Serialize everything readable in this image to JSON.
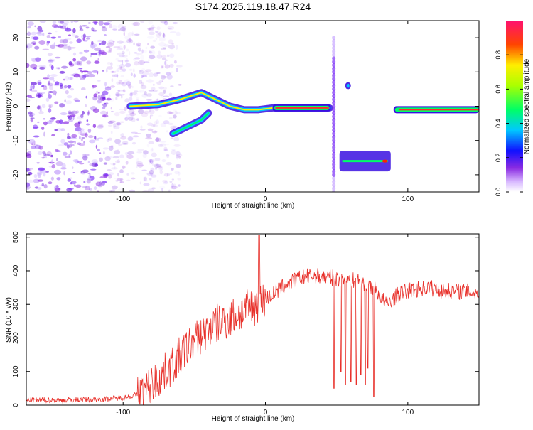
{
  "title": "S174.2025.119.18.47.R24",
  "chart_data": [
    {
      "type": "heatmap",
      "xlabel": "Height of straight line (km)",
      "ylabel": "Frequency (Hz)",
      "xlim": [
        -168,
        150
      ],
      "ylim": [
        -25,
        25
      ],
      "xticks": [
        -100,
        0,
        100
      ],
      "yticks": [
        -20,
        -10,
        0,
        10,
        20
      ],
      "colorbar": {
        "label": "Normalized spectral amplitude",
        "range": [
          0,
          1
        ],
        "ticks": [
          "0.0",
          "0.2",
          "0.4",
          "0.6",
          "0.8"
        ]
      },
      "features": [
        {
          "name": "noise floor",
          "x_range": [
            -168,
            -80
          ],
          "freq_range": [
            -25,
            25
          ]
        },
        {
          "name": "rising trace",
          "x": [
            -95,
            -75,
            -60,
            -45,
            -35,
            -25,
            -15,
            -5,
            5,
            20,
            45
          ],
          "freq": [
            0,
            0.5,
            2,
            4,
            2,
            0,
            -1,
            -1,
            -0.5,
            -0.5,
            -0.5
          ]
        },
        {
          "name": "lower branch",
          "x": [
            -65,
            -55,
            -45,
            -40
          ],
          "freq": [
            -8,
            -6,
            -4,
            -2
          ]
        },
        {
          "name": "vertical streak",
          "x_range": [
            46,
            50
          ],
          "freq_range": [
            -25,
            20
          ]
        },
        {
          "name": "isolated blob",
          "x": 58,
          "freq": 6
        },
        {
          "name": "shifted segment",
          "x_range": [
            52,
            88
          ],
          "freq": -16
        },
        {
          "name": "recovered trace",
          "x_range": [
            90,
            150
          ],
          "freq": -1
        }
      ]
    },
    {
      "type": "line",
      "xlabel": "Height of straight line (km)",
      "ylabel": "SNR (10 * v/v)",
      "xlim": [
        -168,
        150
      ],
      "ylim": [
        0,
        510
      ],
      "xticks": [
        -100,
        0,
        100
      ],
      "yticks": [
        0,
        100,
        200,
        300,
        400,
        500
      ],
      "series": [
        {
          "color": "#e8302a",
          "x": [
            -168,
            -140,
            -110,
            -95,
            -85,
            -75,
            -65,
            -55,
            -45,
            -35,
            -25,
            -15,
            -5,
            5,
            15,
            25,
            35,
            45,
            55,
            65,
            72,
            78,
            85,
            95,
            105,
            115,
            125,
            135,
            150
          ],
          "y": [
            15,
            15,
            18,
            25,
            40,
            80,
            120,
            170,
            210,
            240,
            260,
            280,
            300,
            330,
            360,
            380,
            385,
            380,
            375,
            370,
            360,
            340,
            300,
            335,
            345,
            350,
            340,
            340,
            335
          ]
        }
      ],
      "dropouts": [
        [
          48,
          50
        ],
        [
          53,
          100
        ],
        [
          56,
          60
        ],
        [
          60,
          70
        ],
        [
          64,
          60
        ],
        [
          67,
          90
        ],
        [
          70,
          60
        ],
        [
          72,
          110
        ],
        [
          76,
          25
        ]
      ]
    }
  ]
}
